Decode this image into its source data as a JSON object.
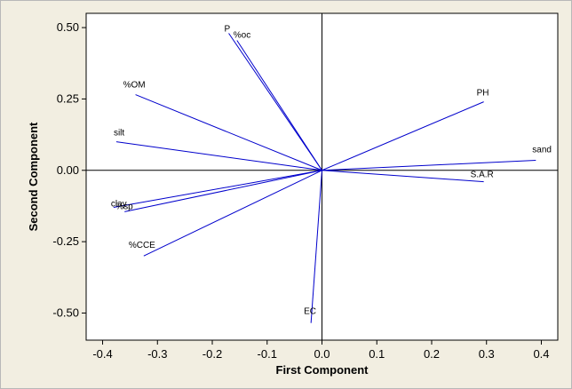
{
  "chart_data": {
    "type": "scatter",
    "subtype": "biplot-loading-vectors",
    "xlabel": "First Component",
    "ylabel": "Second Component",
    "xlim": [
      -0.43,
      0.43
    ],
    "ylim": [
      -0.595,
      0.55
    ],
    "xticks": [
      -0.4,
      -0.3,
      -0.2,
      -0.1,
      0.0,
      0.1,
      0.2,
      0.3,
      0.4
    ],
    "xtick_labels": [
      "-0.4",
      "-0.3",
      "-0.2",
      "-0.1",
      "0.0",
      "0.1",
      "0.2",
      "0.3",
      "0.4"
    ],
    "yticks": [
      0.5,
      0.25,
      0.0,
      -0.25,
      -0.5
    ],
    "ytick_labels": [
      "0.50",
      "0.25",
      "0.00",
      "-0.25",
      "-0.50"
    ],
    "reference_lines": {
      "x": 0,
      "y": 0
    },
    "grid": false,
    "line_color": "#0000cc",
    "background_color": "#f2eee1",
    "plot_background": "#ffffff",
    "vectors": [
      {
        "label": "P",
        "x": -0.17,
        "y": 0.48
      },
      {
        "label": "%oc",
        "x": -0.155,
        "y": 0.455
      },
      {
        "label": "%OM",
        "x": -0.34,
        "y": 0.265
      },
      {
        "label": "silt",
        "x": -0.375,
        "y": 0.1
      },
      {
        "label": "clay",
        "x": -0.38,
        "y": -0.13
      },
      {
        "label": "%sp",
        "x": -0.36,
        "y": -0.145
      },
      {
        "label": "%CCE",
        "x": -0.325,
        "y": -0.3
      },
      {
        "label": "EC",
        "x": -0.02,
        "y": -0.535
      },
      {
        "label": "PH",
        "x": 0.295,
        "y": 0.24
      },
      {
        "label": "sand",
        "x": 0.39,
        "y": 0.035
      },
      {
        "label": "S.A.R",
        "x": 0.295,
        "y": -0.04
      }
    ]
  }
}
